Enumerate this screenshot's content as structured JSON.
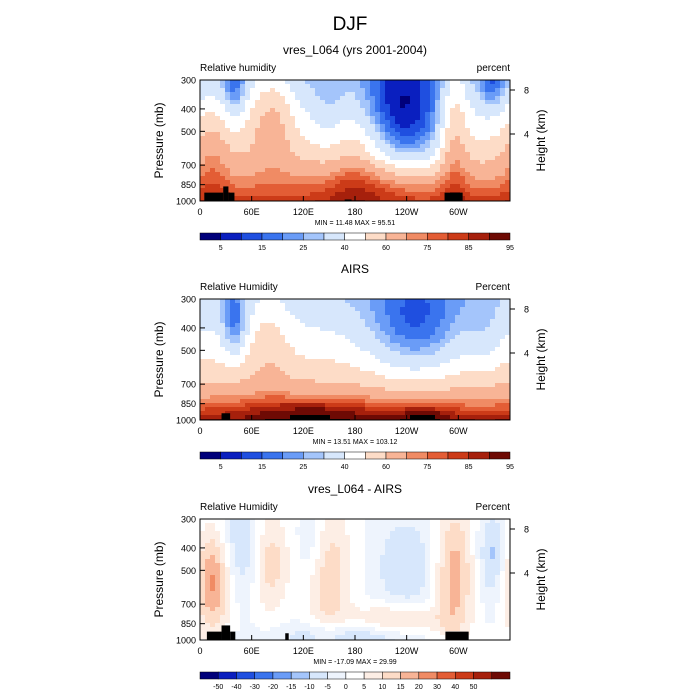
{
  "figure": {
    "title": "DJF"
  },
  "colors": {
    "rh_scale": [
      "#00007a",
      "#0a1fbf",
      "#1f4fe0",
      "#3a74ee",
      "#6a9cf7",
      "#a4c5fb",
      "#d7e7fc",
      "#ffffff",
      "#fddcc7",
      "#f8b496",
      "#f08b64",
      "#e35d35",
      "#cc3b18",
      "#a6200c",
      "#6e0a04"
    ],
    "diff_scale": [
      "#00007a",
      "#0a1fbf",
      "#1f4fe0",
      "#3a74ee",
      "#6a9cf7",
      "#a4c5fb",
      "#d7e7fc",
      "#eef4fd",
      "#ffffff",
      "#fdeee5",
      "#fddcc7",
      "#f8b496",
      "#f08b64",
      "#e35d35",
      "#cc3b18",
      "#a6200c",
      "#6e0a04"
    ],
    "topography": "#000000"
  },
  "chart_data": [
    {
      "type": "heatmap",
      "id": "model",
      "title": "vres_L064 (yrs 2001-2004)",
      "left_label": "Relative humidity",
      "right_label": "percent",
      "ylabel": "Pressure (mb)",
      "y2label": "Height (km)",
      "x_ticks": [
        "0",
        "60E",
        "120E",
        "180",
        "120W",
        "60W"
      ],
      "x_tick_lon": [
        0,
        60,
        120,
        180,
        240,
        300
      ],
      "xlim": [
        0,
        360
      ],
      "y_ticks": [
        "300",
        "400",
        "500",
        "700",
        "850",
        "1000"
      ],
      "y_tick_p": [
        300,
        400,
        500,
        700,
        850,
        1000
      ],
      "ylim": [
        300,
        1000
      ],
      "y2_ticks": [
        "8",
        "4"
      ],
      "stats": "MIN = 11.48  MAX = 95.51",
      "colorbar_labels": [
        "5",
        "15",
        "25",
        "40",
        "60",
        "75",
        "85",
        "95"
      ],
      "topography_blocks": [
        {
          "lon0": 5,
          "lon1": 27,
          "p0": 920
        },
        {
          "lon0": 27,
          "lon1": 33,
          "p0": 865
        },
        {
          "lon0": 33,
          "lon1": 40,
          "p0": 920
        },
        {
          "lon0": 168,
          "lon1": 176,
          "p0": 985
        },
        {
          "lon0": 284,
          "lon1": 305,
          "p0": 920
        }
      ]
    },
    {
      "type": "heatmap",
      "id": "airs",
      "title": "AIRS",
      "left_label": "Relative Humidity",
      "right_label": "Percent",
      "ylabel": "Pressure (mb)",
      "y2label": "Height (km)",
      "x_ticks": [
        "0",
        "60E",
        "120E",
        "180",
        "120W",
        "60W"
      ],
      "x_tick_lon": [
        0,
        60,
        120,
        180,
        240,
        300
      ],
      "xlim": [
        0,
        360
      ],
      "y_ticks": [
        "300",
        "400",
        "500",
        "700",
        "850",
        "1000"
      ],
      "y_tick_p": [
        300,
        400,
        500,
        700,
        850,
        1000
      ],
      "ylim": [
        300,
        1000
      ],
      "y2_ticks": [
        "8",
        "4"
      ],
      "stats": "MIN = 13.51  MAX = 103.12",
      "colorbar_labels": [
        "5",
        "15",
        "25",
        "40",
        "60",
        "75",
        "85",
        "95"
      ],
      "topography_blocks": [
        {
          "lon0": 25,
          "lon1": 35,
          "p0": 935
        }
      ]
    },
    {
      "type": "heatmap",
      "id": "diff",
      "title": "vres_L064 - AIRS",
      "left_label": "Relative Humidity",
      "right_label": "Percent",
      "ylabel": "Pressure (mb)",
      "y2label": "Height (km)",
      "x_ticks": [
        "0",
        "60E",
        "120E",
        "180",
        "120W",
        "60W"
      ],
      "x_tick_lon": [
        0,
        60,
        120,
        180,
        240,
        300
      ],
      "xlim": [
        0,
        360
      ],
      "y_ticks": [
        "300",
        "400",
        "500",
        "700",
        "850",
        "1000"
      ],
      "y_tick_p": [
        300,
        400,
        500,
        700,
        850,
        1000
      ],
      "ylim": [
        300,
        1000
      ],
      "y2_ticks": [
        "8",
        "4"
      ],
      "stats": "MIN = -17.09  MAX = 29.99",
      "colorbar_labels": [
        "-50",
        "-40",
        "-30",
        "-20",
        "-15",
        "-10",
        "-5",
        "0",
        "5",
        "10",
        "15",
        "20",
        "30",
        "40",
        "50"
      ],
      "topography_blocks": [
        {
          "lon0": 8,
          "lon1": 25,
          "p0": 920
        },
        {
          "lon0": 25,
          "lon1": 35,
          "p0": 865
        },
        {
          "lon0": 35,
          "lon1": 41,
          "p0": 920
        },
        {
          "lon0": 99,
          "lon1": 103,
          "p0": 935
        },
        {
          "lon0": 285,
          "lon1": 312,
          "p0": 920
        }
      ]
    }
  ]
}
